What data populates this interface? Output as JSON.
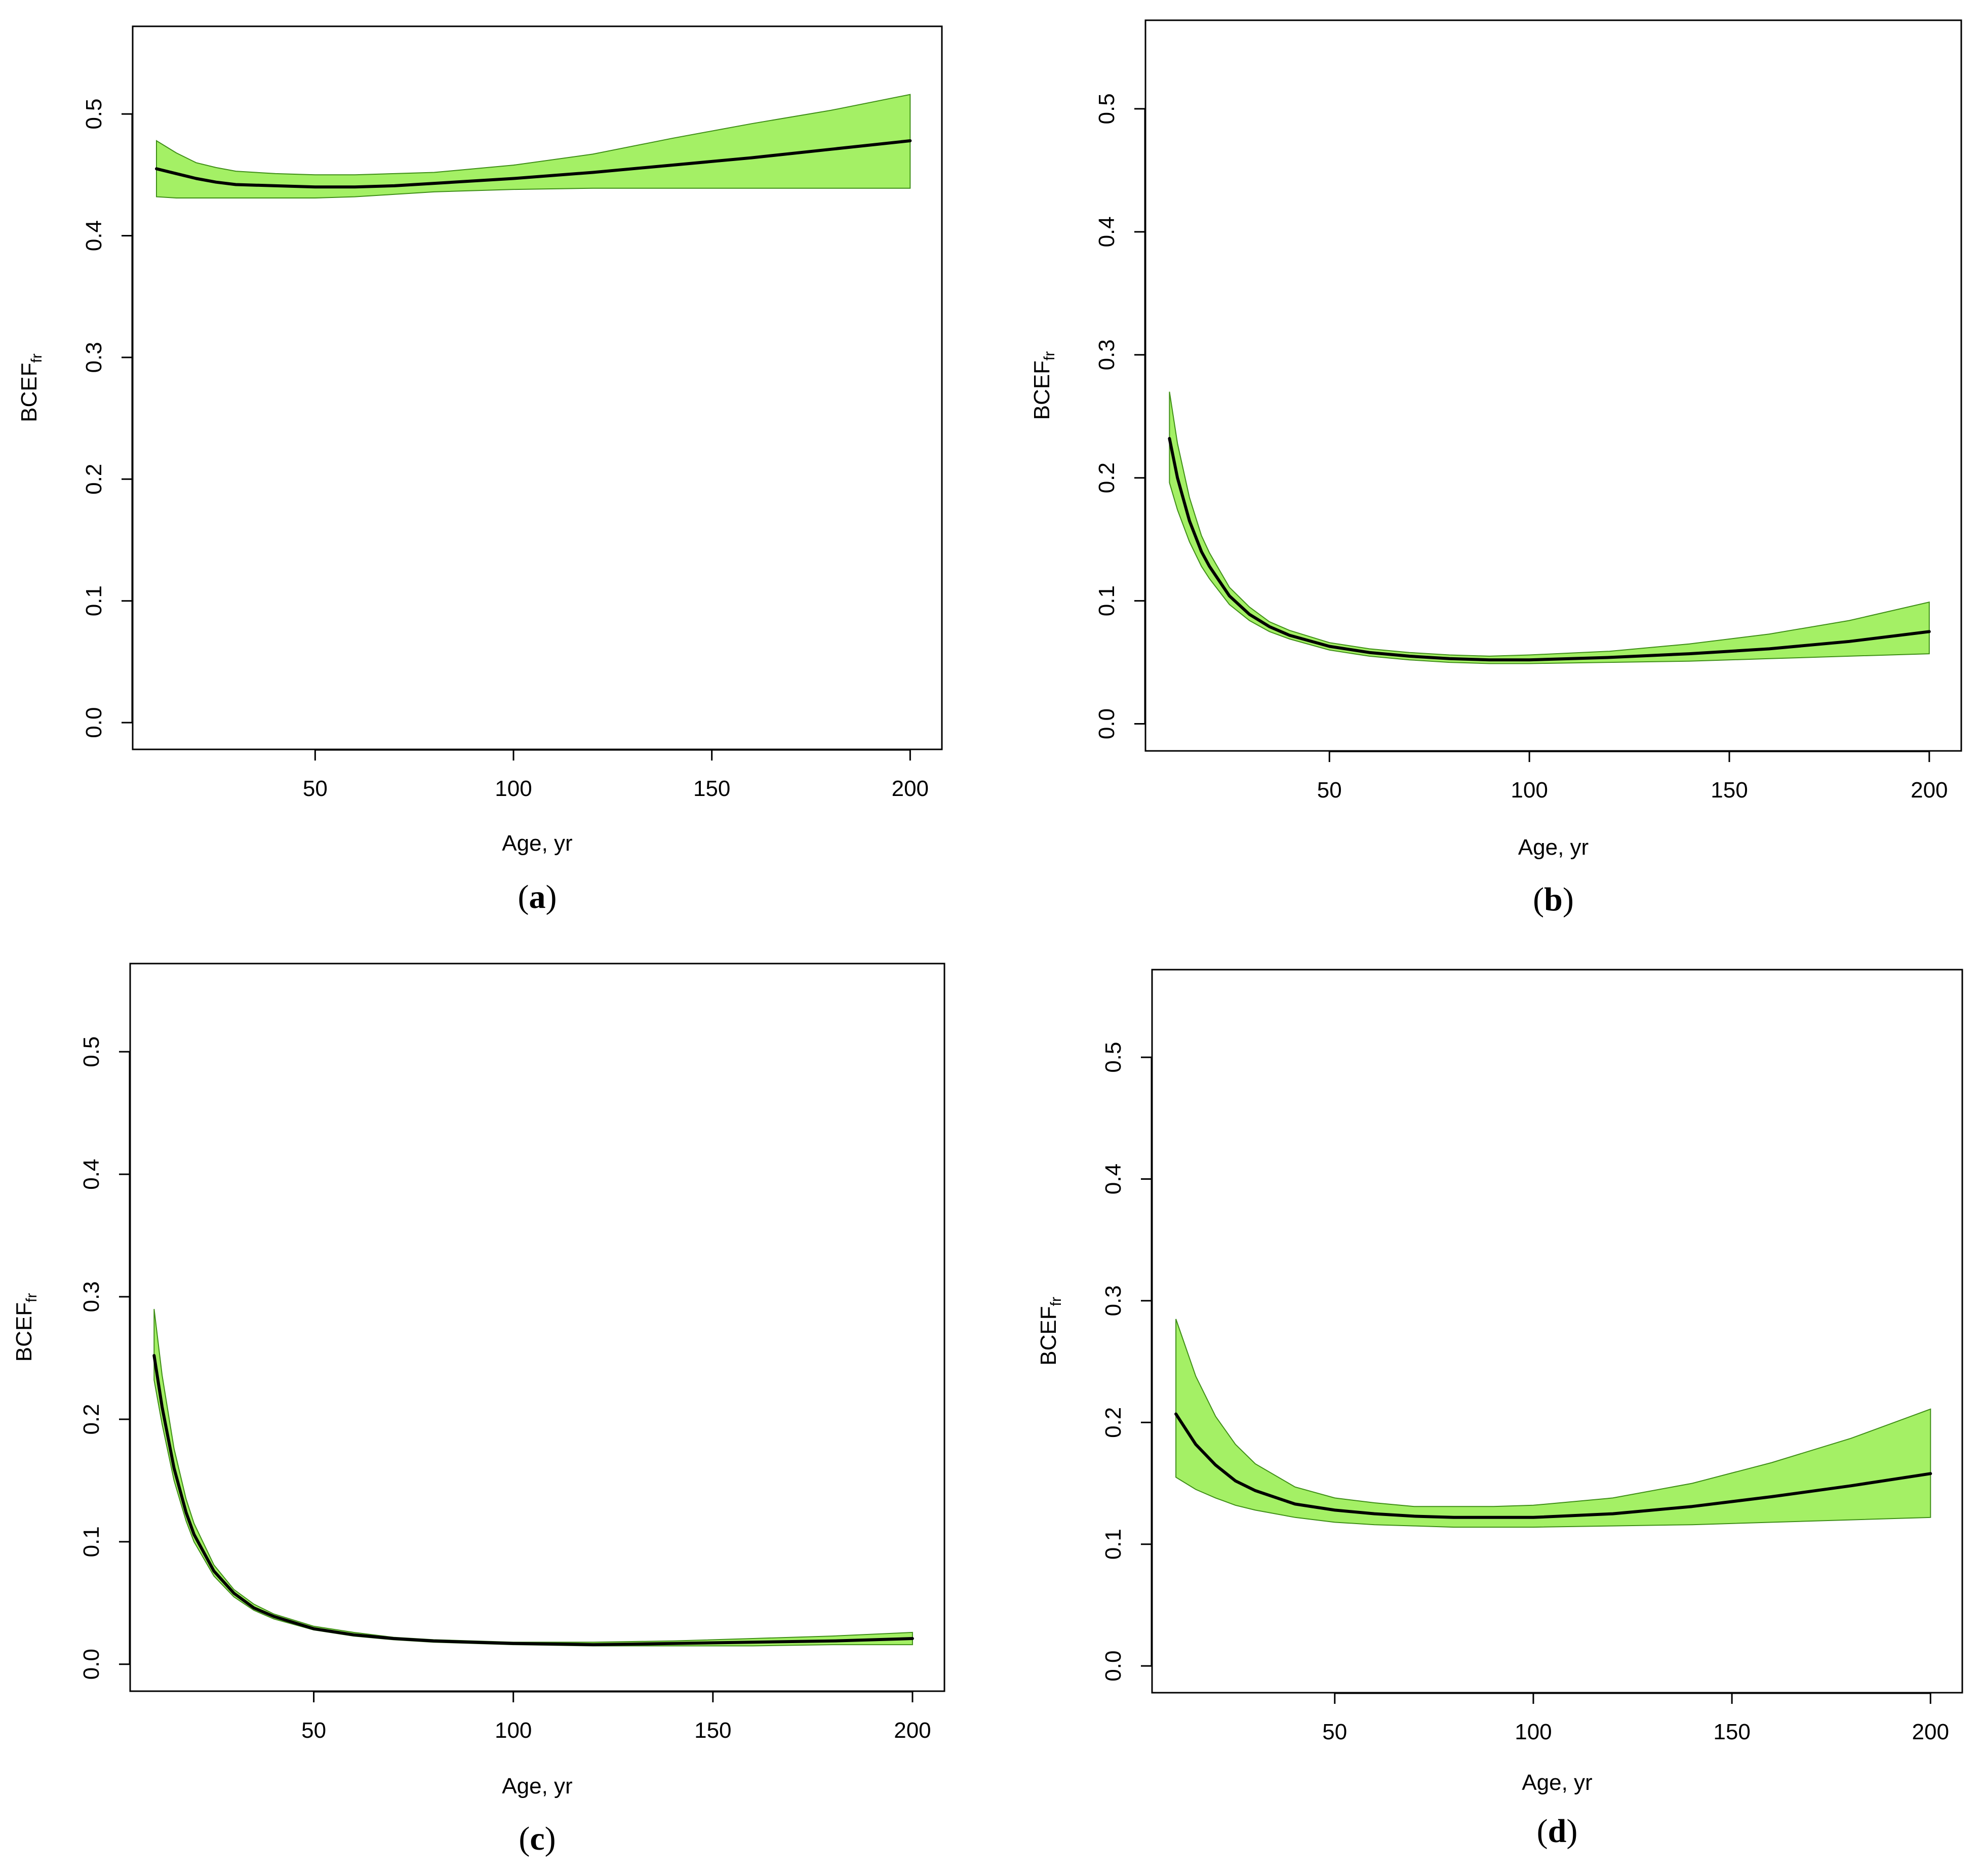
{
  "colors": {
    "band_fill": "#a4f065",
    "band_edge": "#3f8f17",
    "fit_line": "#000000"
  },
  "chart_data": [
    {
      "type": "area",
      "panel_label": "a",
      "xlabel": "Age, yr",
      "ylabel": "BCEF",
      "ylabel_subscript": "fr",
      "xlim": [
        4,
        208
      ],
      "ylim": [
        -0.022,
        0.572
      ],
      "x_ticks": [
        50,
        100,
        150,
        200
      ],
      "x_tick_labels": [
        "50",
        "100",
        "150",
        "200"
      ],
      "y_ticks": [
        0.0,
        0.1,
        0.2,
        0.3,
        0.4,
        0.5
      ],
      "y_tick_labels": [
        "0.0",
        "0.1",
        "0.2",
        "0.3",
        "0.4",
        "0.5"
      ],
      "x": [
        10,
        15,
        20,
        25,
        30,
        40,
        50,
        60,
        70,
        80,
        100,
        120,
        140,
        160,
        180,
        200
      ],
      "series": [
        {
          "role": "fit",
          "values": [
            0.455,
            0.451,
            0.447,
            0.444,
            0.442,
            0.441,
            0.44,
            0.44,
            0.441,
            0.443,
            0.447,
            0.452,
            0.458,
            0.464,
            0.471,
            0.478
          ]
        },
        {
          "role": "lower",
          "values": [
            0.432,
            0.431,
            0.431,
            0.431,
            0.431,
            0.431,
            0.431,
            0.432,
            0.434,
            0.436,
            0.438,
            0.439,
            0.439,
            0.439,
            0.439,
            0.439
          ]
        },
        {
          "role": "upper",
          "values": [
            0.478,
            0.468,
            0.46,
            0.456,
            0.453,
            0.451,
            0.45,
            0.45,
            0.451,
            0.452,
            0.458,
            0.467,
            0.48,
            0.492,
            0.503,
            0.516
          ]
        }
      ]
    },
    {
      "type": "area",
      "panel_label": "b",
      "xlabel": "Age, yr",
      "ylabel": "BCEF",
      "ylabel_subscript": "fr",
      "xlim": [
        4,
        208
      ],
      "ylim": [
        -0.022,
        0.572
      ],
      "x_ticks": [
        50,
        100,
        150,
        200
      ],
      "x_tick_labels": [
        "50",
        "100",
        "150",
        "200"
      ],
      "y_ticks": [
        0.0,
        0.1,
        0.2,
        0.3,
        0.4,
        0.5
      ],
      "y_tick_labels": [
        "0.0",
        "0.1",
        "0.2",
        "0.3",
        "0.4",
        "0.5"
      ],
      "x": [
        10,
        12,
        15,
        18,
        20,
        25,
        30,
        35,
        40,
        50,
        60,
        70,
        80,
        90,
        100,
        120,
        140,
        160,
        180,
        200
      ],
      "series": [
        {
          "role": "fit",
          "values": [
            0.232,
            0.2,
            0.165,
            0.14,
            0.128,
            0.104,
            0.089,
            0.079,
            0.072,
            0.063,
            0.058,
            0.055,
            0.053,
            0.052,
            0.052,
            0.054,
            0.057,
            0.061,
            0.067,
            0.075
          ]
        },
        {
          "role": "lower",
          "values": [
            0.196,
            0.174,
            0.148,
            0.128,
            0.118,
            0.097,
            0.084,
            0.075,
            0.069,
            0.06,
            0.055,
            0.052,
            0.05,
            0.049,
            0.049,
            0.05,
            0.051,
            0.053,
            0.055,
            0.057
          ]
        },
        {
          "role": "upper",
          "values": [
            0.27,
            0.228,
            0.184,
            0.153,
            0.139,
            0.111,
            0.095,
            0.083,
            0.076,
            0.066,
            0.061,
            0.058,
            0.056,
            0.055,
            0.056,
            0.059,
            0.065,
            0.073,
            0.084,
            0.099
          ]
        }
      ]
    },
    {
      "type": "area",
      "panel_label": "c",
      "xlabel": "Age, yr",
      "ylabel": "BCEF",
      "ylabel_subscript": "fr",
      "xlim": [
        4,
        208
      ],
      "ylim": [
        -0.022,
        0.572
      ],
      "x_ticks": [
        50,
        100,
        150,
        200
      ],
      "x_tick_labels": [
        "50",
        "100",
        "150",
        "200"
      ],
      "y_ticks": [
        0.0,
        0.1,
        0.2,
        0.3,
        0.4,
        0.5
      ],
      "y_tick_labels": [
        "0.0",
        "0.1",
        "0.2",
        "0.3",
        "0.4",
        "0.5"
      ],
      "x": [
        10,
        12,
        15,
        18,
        20,
        25,
        30,
        35,
        40,
        50,
        60,
        70,
        80,
        100,
        120,
        140,
        160,
        180,
        200
      ],
      "series": [
        {
          "role": "fit",
          "values": [
            0.252,
            0.21,
            0.16,
            0.124,
            0.106,
            0.076,
            0.058,
            0.046,
            0.039,
            0.029,
            0.024,
            0.021,
            0.019,
            0.017,
            0.016,
            0.017,
            0.018,
            0.019,
            0.021
          ]
        },
        {
          "role": "lower",
          "values": [
            0.232,
            0.196,
            0.15,
            0.117,
            0.1,
            0.072,
            0.055,
            0.044,
            0.037,
            0.028,
            0.023,
            0.02,
            0.018,
            0.016,
            0.015,
            0.015,
            0.015,
            0.016,
            0.016
          ]
        },
        {
          "role": "upper",
          "values": [
            0.29,
            0.236,
            0.176,
            0.135,
            0.115,
            0.081,
            0.061,
            0.049,
            0.041,
            0.031,
            0.026,
            0.022,
            0.02,
            0.018,
            0.018,
            0.019,
            0.021,
            0.023,
            0.026
          ]
        }
      ]
    },
    {
      "type": "area",
      "panel_label": "d",
      "xlabel": "Age, yr",
      "ylabel": "BCEF",
      "ylabel_subscript": "fr",
      "xlim": [
        4,
        208
      ],
      "ylim": [
        -0.022,
        0.572
      ],
      "x_ticks": [
        50,
        100,
        150,
        200
      ],
      "x_tick_labels": [
        "50",
        "100",
        "150",
        "200"
      ],
      "y_ticks": [
        0.0,
        0.1,
        0.2,
        0.3,
        0.4,
        0.5
      ],
      "y_tick_labels": [
        "0.0",
        "0.1",
        "0.2",
        "0.3",
        "0.4",
        "0.5"
      ],
      "x": [
        10,
        15,
        20,
        25,
        30,
        40,
        50,
        60,
        70,
        80,
        90,
        100,
        120,
        140,
        160,
        180,
        200
      ],
      "series": [
        {
          "role": "fit",
          "values": [
            0.207,
            0.182,
            0.165,
            0.152,
            0.144,
            0.133,
            0.128,
            0.125,
            0.123,
            0.122,
            0.122,
            0.122,
            0.125,
            0.131,
            0.139,
            0.148,
            0.158
          ]
        },
        {
          "role": "lower",
          "values": [
            0.155,
            0.145,
            0.138,
            0.132,
            0.128,
            0.122,
            0.118,
            0.116,
            0.115,
            0.114,
            0.114,
            0.114,
            0.115,
            0.116,
            0.118,
            0.12,
            0.122
          ]
        },
        {
          "role": "upper",
          "values": [
            0.285,
            0.238,
            0.205,
            0.182,
            0.166,
            0.147,
            0.138,
            0.134,
            0.131,
            0.131,
            0.131,
            0.132,
            0.138,
            0.15,
            0.167,
            0.187,
            0.211
          ]
        }
      ]
    }
  ]
}
